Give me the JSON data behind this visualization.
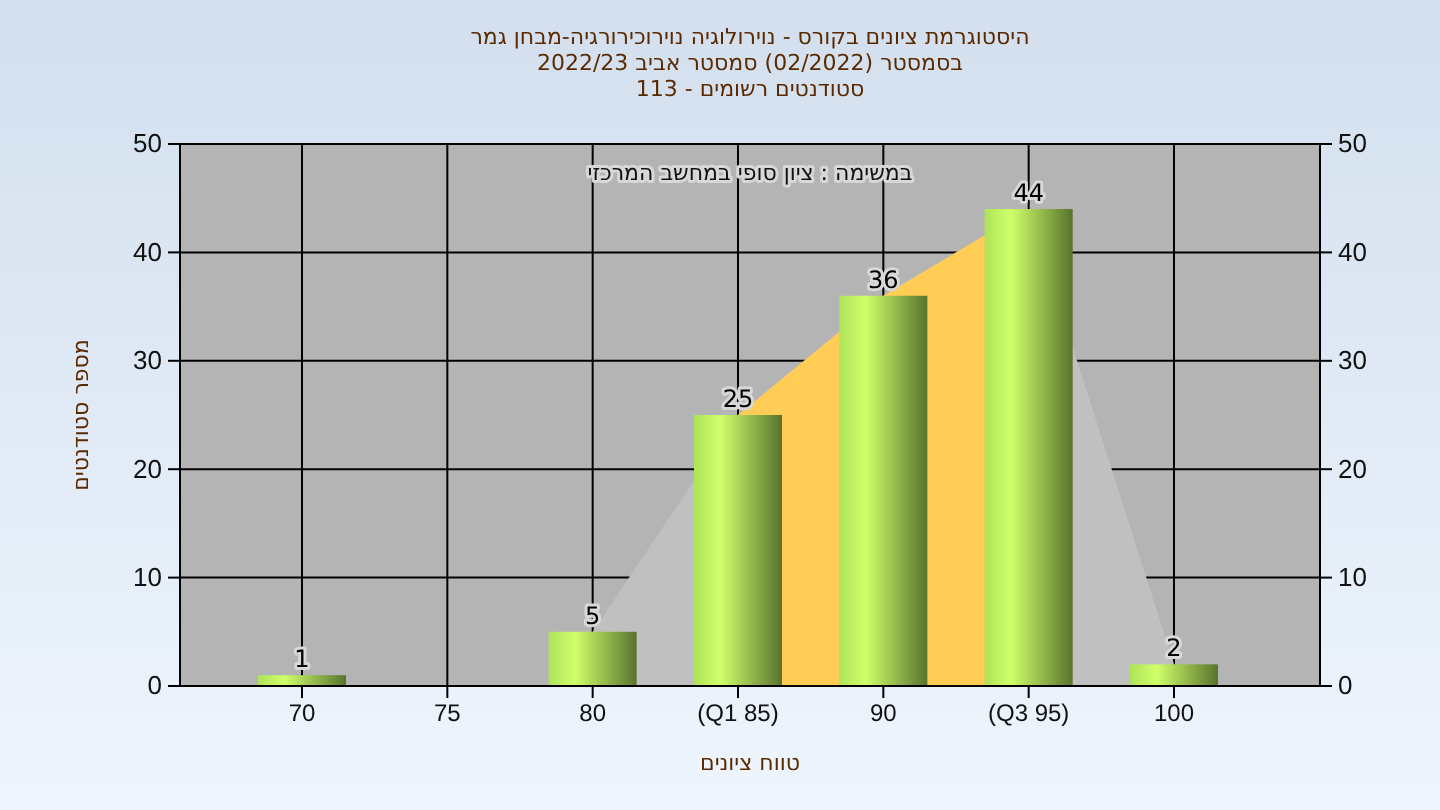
{
  "chart_data": {
    "type": "bar",
    "title": "היסטוגרמת ציונים בקורס - נוירולוגיה נוירוכירורגיה-מבחן גמר",
    "subtitle": [
      "בסמסטר (02/2022) סמסטר אביב 2022/23",
      "סטודנטים רשומים - 113"
    ],
    "xlabel": "טווח ציונים",
    "ylabel": "מספר סטודנטים",
    "annotations": [
      "במשימה : ציון סופי במחשב המרכזי"
    ],
    "categories": [
      "70",
      "75",
      "80",
      "(Q1 85)",
      "90",
      "(Q3 95)",
      "100"
    ],
    "series": [
      {
        "type": "area",
        "color": "#c0c0c0",
        "values": [
          null,
          null,
          5,
          25,
          36,
          44,
          2
        ]
      },
      {
        "type": "area",
        "color": "#ffcc55",
        "values": [
          null,
          null,
          null,
          25,
          36,
          44,
          null
        ]
      },
      {
        "type": "bar",
        "color": "#9ccc50",
        "values": [
          1,
          0,
          5,
          25,
          36,
          44,
          2
        ],
        "value_labels": [
          "1",
          null,
          "5",
          "25",
          "36",
          "44",
          "2"
        ]
      }
    ],
    "ylim": [
      0,
      50
    ],
    "yticks": [
      0,
      10,
      20,
      30,
      40,
      50
    ],
    "y2lim": [
      0,
      50
    ],
    "y2ticks": [
      0,
      10,
      20,
      30,
      40,
      50
    ],
    "grid": true
  }
}
